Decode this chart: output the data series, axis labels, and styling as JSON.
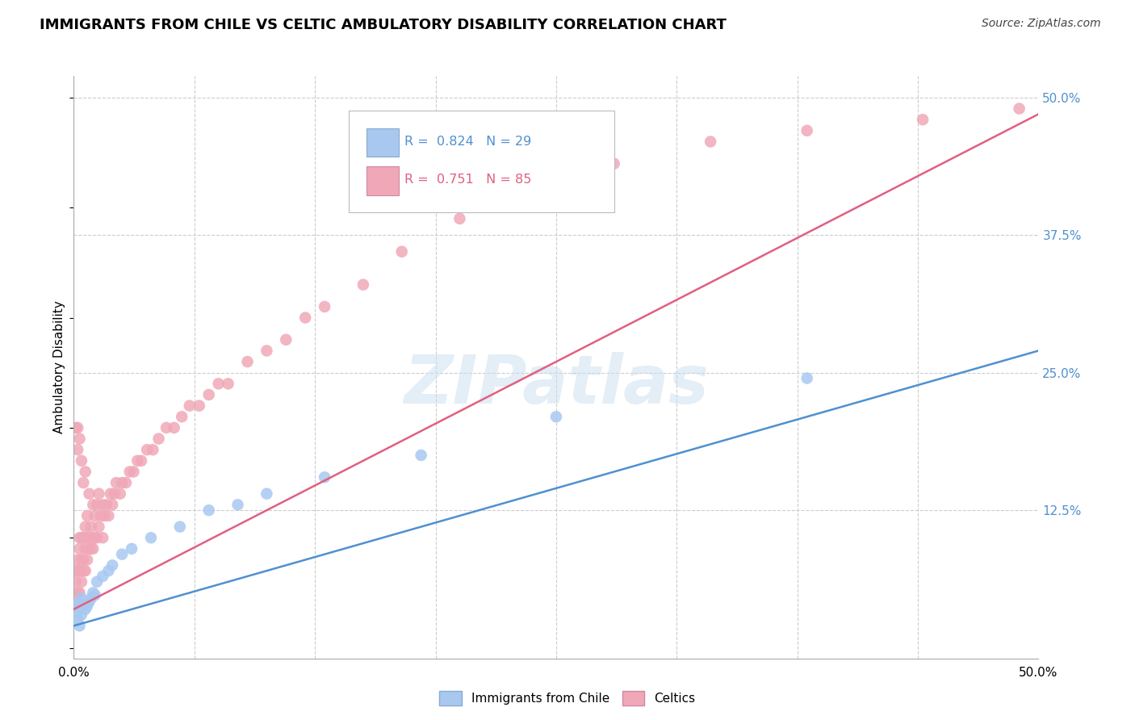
{
  "title": "IMMIGRANTS FROM CHILE VS CELTIC AMBULATORY DISABILITY CORRELATION CHART",
  "source": "Source: ZipAtlas.com",
  "ylabel": "Ambulatory Disability",
  "xlim": [
    0.0,
    0.5
  ],
  "ylim": [
    -0.01,
    0.52
  ],
  "grid_color": "#cccccc",
  "background_color": "#ffffff",
  "chile_color": "#a8c8f0",
  "celtic_color": "#f0a8b8",
  "chile_line_color": "#5090d0",
  "celtic_line_color": "#e06080",
  "chile_R": 0.824,
  "chile_N": 29,
  "celtic_R": 0.751,
  "celtic_N": 85,
  "watermark_text": "ZIPatlas",
  "legend_label_chile": "Immigrants from Chile",
  "legend_label_celtic": "Celtics",
  "title_fontsize": 13,
  "label_fontsize": 11,
  "tick_fontsize": 11,
  "source_fontsize": 10,
  "chile_x": [
    0.001,
    0.002,
    0.002,
    0.003,
    0.003,
    0.004,
    0.004,
    0.005,
    0.006,
    0.007,
    0.008,
    0.009,
    0.01,
    0.011,
    0.012,
    0.015,
    0.018,
    0.02,
    0.025,
    0.03,
    0.04,
    0.055,
    0.07,
    0.085,
    0.1,
    0.13,
    0.18,
    0.25,
    0.38
  ],
  "chile_y": [
    0.03,
    0.025,
    0.04,
    0.02,
    0.035,
    0.03,
    0.045,
    0.04,
    0.035,
    0.038,
    0.042,
    0.045,
    0.05,
    0.048,
    0.06,
    0.065,
    0.07,
    0.075,
    0.085,
    0.09,
    0.1,
    0.11,
    0.125,
    0.13,
    0.14,
    0.155,
    0.175,
    0.21,
    0.245
  ],
  "celtic_x": [
    0.001,
    0.001,
    0.001,
    0.001,
    0.002,
    0.002,
    0.002,
    0.002,
    0.002,
    0.003,
    0.003,
    0.003,
    0.003,
    0.003,
    0.004,
    0.004,
    0.004,
    0.004,
    0.005,
    0.005,
    0.005,
    0.005,
    0.006,
    0.006,
    0.006,
    0.006,
    0.007,
    0.007,
    0.007,
    0.008,
    0.008,
    0.008,
    0.009,
    0.009,
    0.01,
    0.01,
    0.01,
    0.011,
    0.011,
    0.012,
    0.012,
    0.013,
    0.013,
    0.014,
    0.015,
    0.015,
    0.016,
    0.017,
    0.018,
    0.019,
    0.02,
    0.021,
    0.022,
    0.024,
    0.025,
    0.027,
    0.029,
    0.031,
    0.033,
    0.035,
    0.038,
    0.041,
    0.044,
    0.048,
    0.052,
    0.056,
    0.06,
    0.065,
    0.07,
    0.075,
    0.08,
    0.09,
    0.1,
    0.11,
    0.12,
    0.13,
    0.15,
    0.17,
    0.2,
    0.24,
    0.28,
    0.33,
    0.38,
    0.44,
    0.49
  ],
  "celtic_y": [
    0.04,
    0.06,
    0.07,
    0.2,
    0.05,
    0.07,
    0.08,
    0.18,
    0.2,
    0.05,
    0.07,
    0.09,
    0.1,
    0.19,
    0.06,
    0.08,
    0.1,
    0.17,
    0.07,
    0.08,
    0.1,
    0.15,
    0.07,
    0.09,
    0.11,
    0.16,
    0.08,
    0.1,
    0.12,
    0.09,
    0.1,
    0.14,
    0.09,
    0.11,
    0.09,
    0.1,
    0.13,
    0.1,
    0.12,
    0.1,
    0.13,
    0.11,
    0.14,
    0.12,
    0.1,
    0.13,
    0.12,
    0.13,
    0.12,
    0.14,
    0.13,
    0.14,
    0.15,
    0.14,
    0.15,
    0.15,
    0.16,
    0.16,
    0.17,
    0.17,
    0.18,
    0.18,
    0.19,
    0.2,
    0.2,
    0.21,
    0.22,
    0.22,
    0.23,
    0.24,
    0.24,
    0.26,
    0.27,
    0.28,
    0.3,
    0.31,
    0.33,
    0.36,
    0.39,
    0.42,
    0.44,
    0.46,
    0.47,
    0.48,
    0.49
  ]
}
